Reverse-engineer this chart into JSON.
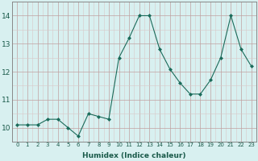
{
  "x": [
    0,
    1,
    2,
    3,
    4,
    5,
    6,
    7,
    8,
    9,
    10,
    11,
    12,
    13,
    14,
    15,
    16,
    17,
    18,
    19,
    20,
    21,
    22,
    23
  ],
  "y": [
    10.1,
    10.1,
    10.1,
    10.3,
    10.3,
    10.0,
    9.7,
    10.5,
    10.4,
    10.3,
    12.5,
    13.2,
    14.0,
    14.0,
    12.8,
    12.1,
    11.6,
    11.2,
    11.2,
    11.7,
    12.5,
    14.0,
    12.8,
    12.2
  ],
  "line_color": "#1a6b5a",
  "marker": "D",
  "marker_size": 2.0,
  "bg_color": "#d8f0f0",
  "grid_color_major": "#c0a0a0",
  "grid_color_minor": "#d8c8c8",
  "xlabel": "Humidex (Indice chaleur)",
  "xlim": [
    -0.5,
    23.5
  ],
  "ylim": [
    9.5,
    14.5
  ],
  "yticks": [
    10,
    11,
    12,
    13,
    14
  ],
  "xticks": [
    0,
    1,
    2,
    3,
    4,
    5,
    6,
    7,
    8,
    9,
    10,
    11,
    12,
    13,
    14,
    15,
    16,
    17,
    18,
    19,
    20,
    21,
    22,
    23
  ],
  "xlabel_fontsize": 6.5,
  "xlabel_fontweight": "bold",
  "xtick_fontsize": 5.0,
  "ytick_fontsize": 6.5
}
